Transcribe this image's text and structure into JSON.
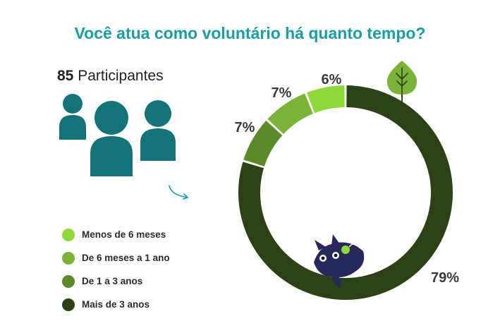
{
  "title_part1": "Você atua como ",
  "title_part2": "voluntário há quanto tempo?",
  "participants": {
    "count": "85",
    "label": " Participantes"
  },
  "icons": [
    "people-icon",
    "arrow-icon",
    "leaf-icon",
    "mascot-icon"
  ],
  "colors": {
    "title": "#1a9da3",
    "people": "#137378"
  },
  "chart_data": {
    "type": "pie",
    "style": "donut",
    "categories": [
      "Menos de 6 meses",
      "De 6 meses a 1 ano",
      "De 1 a 3 anos",
      "Mais de 3 anos"
    ],
    "values": [
      6,
      7,
      7,
      79
    ],
    "labels": [
      "6%",
      "7%",
      "7%",
      "79%"
    ],
    "colors": [
      "#8ed83a",
      "#7ab337",
      "#5c8a2a",
      "#2d4117"
    ],
    "legend_position": "left"
  }
}
